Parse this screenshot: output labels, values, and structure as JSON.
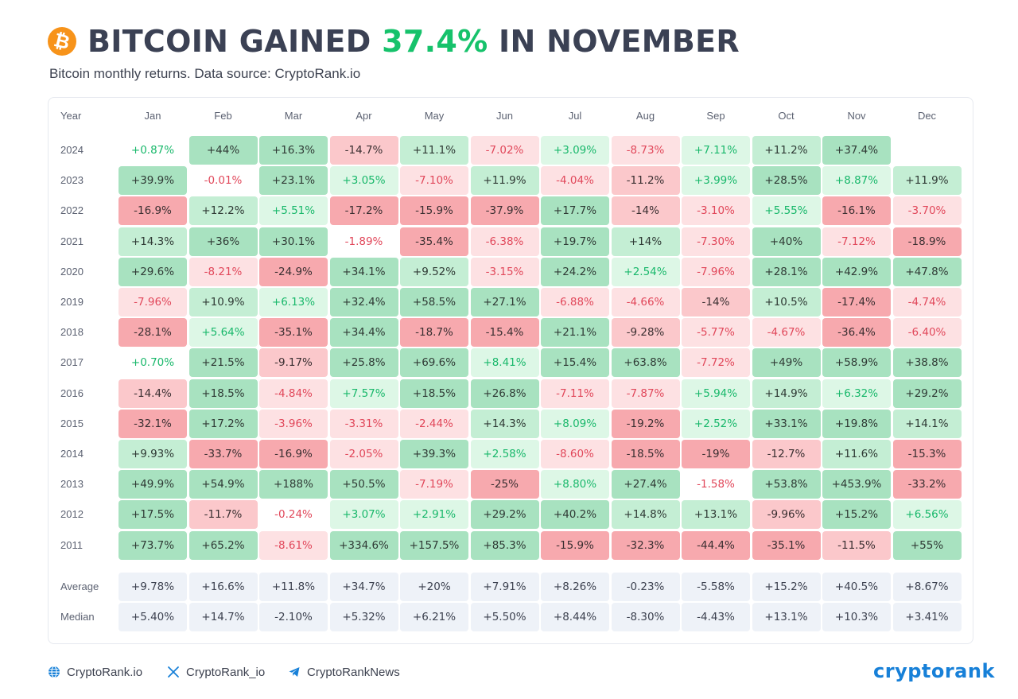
{
  "header": {
    "title_prefix": "BITCOIN GAINED ",
    "title_highlight": "37.4%",
    "title_suffix": " IN NOVEMBER",
    "subtitle": "Bitcoin monthly returns. Data source: CryptoRank.io",
    "logo_icon": "bitcoin-icon"
  },
  "colors": {
    "positive_strong": "#a8e2c0",
    "positive_medium": "#c4eed4",
    "positive_light": "#ddf7e6",
    "negative_strong": "#f7a9ae",
    "negative_medium": "#fbc8cb",
    "negative_light": "#fde1e3",
    "positive_text_light": "#19b86b",
    "negative_text_light": "#e1475a",
    "title_accent": "#16c26b",
    "brand": "#1780d8"
  },
  "chart_data": {
    "type": "table",
    "title": "BITCOIN GAINED 37.4% IN NOVEMBER",
    "subtitle": "Bitcoin monthly returns. Data source: CryptoRank.io",
    "corner_label": "Year",
    "months": [
      "Jan",
      "Feb",
      "Mar",
      "Apr",
      "May",
      "Jun",
      "Jul",
      "Aug",
      "Sep",
      "Oct",
      "Nov",
      "Dec"
    ],
    "rows": [
      {
        "year": "2024",
        "values": [
          "+0.87%",
          "+44%",
          "+16.3%",
          "-14.7%",
          "+11.1%",
          "-7.02%",
          "+3.09%",
          "-8.73%",
          "+7.11%",
          "+11.2%",
          "+37.4%",
          ""
        ]
      },
      {
        "year": "2023",
        "values": [
          "+39.9%",
          "-0.01%",
          "+23.1%",
          "+3.05%",
          "-7.10%",
          "+11.9%",
          "-4.04%",
          "-11.2%",
          "+3.99%",
          "+28.5%",
          "+8.87%",
          "+11.9%"
        ]
      },
      {
        "year": "2022",
        "values": [
          "-16.9%",
          "+12.2%",
          "+5.51%",
          "-17.2%",
          "-15.9%",
          "-37.9%",
          "+17.7%",
          "-14%",
          "-3.10%",
          "+5.55%",
          "-16.1%",
          "-3.70%"
        ]
      },
      {
        "year": "2021",
        "values": [
          "+14.3%",
          "+36%",
          "+30.1%",
          "-1.89%",
          "-35.4%",
          "-6.38%",
          "+19.7%",
          "+14%",
          "-7.30%",
          "+40%",
          "-7.12%",
          "-18.9%"
        ]
      },
      {
        "year": "2020",
        "values": [
          "+29.6%",
          "-8.21%",
          "-24.9%",
          "+34.1%",
          "+9.52%",
          "-3.15%",
          "+24.2%",
          "+2.54%",
          "-7.96%",
          "+28.1%",
          "+42.9%",
          "+47.8%"
        ]
      },
      {
        "year": "2019",
        "values": [
          "-7.96%",
          "+10.9%",
          "+6.13%",
          "+32.4%",
          "+58.5%",
          "+27.1%",
          "-6.88%",
          "-4.66%",
          "-14%",
          "+10.5%",
          "-17.4%",
          "-4.74%"
        ]
      },
      {
        "year": "2018",
        "values": [
          "-28.1%",
          "+5.64%",
          "-35.1%",
          "+34.4%",
          "-18.7%",
          "-15.4%",
          "+21.1%",
          "-9.28%",
          "-5.77%",
          "-4.67%",
          "-36.4%",
          "-6.40%"
        ]
      },
      {
        "year": "2017",
        "values": [
          "+0.70%",
          "+21.5%",
          "-9.17%",
          "+25.8%",
          "+69.6%",
          "+8.41%",
          "+15.4%",
          "+63.8%",
          "-7.72%",
          "+49%",
          "+58.9%",
          "+38.8%"
        ]
      },
      {
        "year": "2016",
        "values": [
          "-14.4%",
          "+18.5%",
          "-4.84%",
          "+7.57%",
          "+18.5%",
          "+26.8%",
          "-7.11%",
          "-7.87%",
          "+5.94%",
          "+14.9%",
          "+6.32%",
          "+29.2%"
        ]
      },
      {
        "year": "2015",
        "values": [
          "-32.1%",
          "+17.2%",
          "-3.96%",
          "-3.31%",
          "-2.44%",
          "+14.3%",
          "+8.09%",
          "-19.2%",
          "+2.52%",
          "+33.1%",
          "+19.8%",
          "+14.1%"
        ]
      },
      {
        "year": "2014",
        "values": [
          "+9.93%",
          "-33.7%",
          "-16.9%",
          "-2.05%",
          "+39.3%",
          "+2.58%",
          "-8.60%",
          "-18.5%",
          "-19%",
          "-12.7%",
          "+11.6%",
          "-15.3%"
        ]
      },
      {
        "year": "2013",
        "values": [
          "+49.9%",
          "+54.9%",
          "+188%",
          "+50.5%",
          "-7.19%",
          "-25%",
          "+8.80%",
          "+27.4%",
          "-1.58%",
          "+53.8%",
          "+453.9%",
          "-33.2%"
        ]
      },
      {
        "year": "2012",
        "values": [
          "+17.5%",
          "-11.7%",
          "-0.24%",
          "+3.07%",
          "+2.91%",
          "+29.2%",
          "+40.2%",
          "+14.8%",
          "+13.1%",
          "-9.96%",
          "+15.2%",
          "+6.56%"
        ]
      },
      {
        "year": "2011",
        "values": [
          "+73.7%",
          "+65.2%",
          "-8.61%",
          "+334.6%",
          "+157.5%",
          "+85.3%",
          "-15.9%",
          "-32.3%",
          "-44.4%",
          "-35.1%",
          "-11.5%",
          "+55%"
        ]
      }
    ],
    "summary_rows": [
      {
        "label": "Average",
        "values": [
          "+9.78%",
          "+16.6%",
          "+11.8%",
          "+34.7%",
          "+20%",
          "+7.91%",
          "+8.26%",
          "-0.23%",
          "-5.58%",
          "+15.2%",
          "+40.5%",
          "+8.67%"
        ]
      },
      {
        "label": "Median",
        "values": [
          "+5.40%",
          "+14.7%",
          "-2.10%",
          "+5.32%",
          "+6.21%",
          "+5.50%",
          "+8.44%",
          "-8.30%",
          "-4.43%",
          "+13.1%",
          "+10.3%",
          "+3.41%"
        ]
      }
    ]
  },
  "footer": {
    "website_label": "CryptoRank.io",
    "website_icon": "globe-icon",
    "x_label": "CryptoRank_io",
    "x_icon": "x-logo-icon",
    "telegram_label": "CryptoRankNews",
    "telegram_icon": "telegram-icon",
    "brand_logo_text": "cryptorank"
  }
}
